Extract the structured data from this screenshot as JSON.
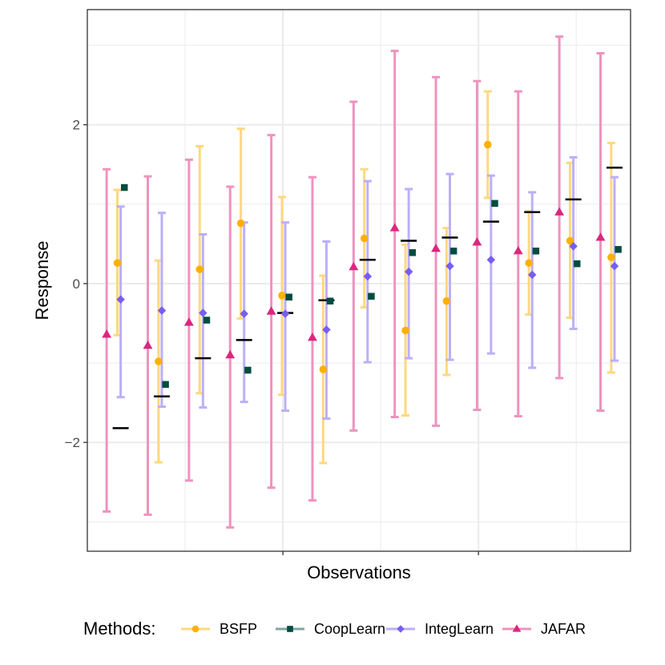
{
  "chart_data": {
    "type": "errorbar",
    "xlabel": "Observations",
    "ylabel": "Response",
    "ylim": [
      -3.37,
      3.45
    ],
    "yticks": [
      -2,
      0,
      2
    ],
    "ytick_labels": [
      "−2",
      "0",
      "2"
    ],
    "grid": true,
    "legend_position": "bottom",
    "legend_title": "Methods:",
    "observations": 13,
    "truth": [
      -1.82,
      -1.42,
      -0.94,
      -0.71,
      -0.37,
      -0.21,
      0.3,
      0.54,
      0.58,
      0.78,
      0.9,
      1.06,
      1.46
    ],
    "series": [
      {
        "name": "BSFP",
        "color": "#FFB000",
        "marker": "circle",
        "points": [
          {
            "y": 0.26,
            "lo": -0.65,
            "hi": 1.18
          },
          {
            "y": -0.98,
            "lo": -2.25,
            "hi": 0.29
          },
          {
            "y": 0.18,
            "lo": -1.38,
            "hi": 1.73
          },
          {
            "y": 0.76,
            "lo": -0.44,
            "hi": 1.95
          },
          {
            "y": -0.15,
            "lo": -1.4,
            "hi": 1.09
          },
          {
            "y": -1.08,
            "lo": -2.26,
            "hi": 0.1
          },
          {
            "y": 0.57,
            "lo": -0.3,
            "hi": 1.44
          },
          {
            "y": -0.59,
            "lo": -1.66,
            "hi": 0.49
          },
          {
            "y": -0.22,
            "lo": -1.15,
            "hi": 0.7
          },
          {
            "y": 1.75,
            "lo": 1.08,
            "hi": 2.42
          },
          {
            "y": 0.26,
            "lo": -0.39,
            "hi": 0.91
          },
          {
            "y": 0.54,
            "lo": -0.43,
            "hi": 1.52
          },
          {
            "y": 0.33,
            "lo": -1.12,
            "hi": 1.77
          }
        ]
      },
      {
        "name": "CoopLearn",
        "color": "#004D40",
        "marker": "square",
        "points": [
          {
            "y": 1.21
          },
          {
            "y": -1.27
          },
          {
            "y": -0.46
          },
          {
            "y": -1.09
          },
          {
            "y": -0.17
          },
          {
            "y": -0.22
          },
          {
            "y": -0.16
          },
          {
            "y": 0.39
          },
          {
            "y": 0.41
          },
          {
            "y": 1.01
          },
          {
            "y": 0.41
          },
          {
            "y": 0.25
          },
          {
            "y": 0.43
          }
        ]
      },
      {
        "name": "IntegLearn",
        "color": "#785EF0",
        "marker": "diamond",
        "points": [
          {
            "y": -0.2,
            "lo": -1.43,
            "hi": 0.97
          },
          {
            "y": -0.34,
            "lo": -1.55,
            "hi": 0.89
          },
          {
            "y": -0.37,
            "lo": -1.56,
            "hi": 0.62
          },
          {
            "y": -0.38,
            "lo": -1.49,
            "hi": 0.77
          },
          {
            "y": -0.38,
            "lo": -1.6,
            "hi": 0.77
          },
          {
            "y": -0.58,
            "lo": -1.7,
            "hi": 0.53
          },
          {
            "y": 0.09,
            "lo": -0.99,
            "hi": 1.29
          },
          {
            "y": 0.15,
            "lo": -0.94,
            "hi": 1.19
          },
          {
            "y": 0.22,
            "lo": -0.96,
            "hi": 1.38
          },
          {
            "y": 0.3,
            "lo": -0.88,
            "hi": 1.36
          },
          {
            "y": 0.11,
            "lo": -1.06,
            "hi": 1.15
          },
          {
            "y": 0.47,
            "lo": -0.57,
            "hi": 1.59
          },
          {
            "y": 0.22,
            "lo": -0.97,
            "hi": 1.34
          }
        ]
      },
      {
        "name": "JAFAR",
        "color": "#DC267F",
        "marker": "triangle",
        "points": [
          {
            "y": -0.64,
            "lo": -2.87,
            "hi": 1.44
          },
          {
            "y": -0.78,
            "lo": -2.91,
            "hi": 1.35
          },
          {
            "y": -0.49,
            "lo": -2.48,
            "hi": 1.56
          },
          {
            "y": -0.9,
            "lo": -3.07,
            "hi": 1.22
          },
          {
            "y": -0.35,
            "lo": -2.57,
            "hi": 1.87
          },
          {
            "y": -0.68,
            "lo": -2.73,
            "hi": 1.34
          },
          {
            "y": 0.21,
            "lo": -1.85,
            "hi": 2.29
          },
          {
            "y": 0.7,
            "lo": -1.68,
            "hi": 2.93
          },
          {
            "y": 0.44,
            "lo": -1.79,
            "hi": 2.6
          },
          {
            "y": 0.52,
            "lo": -1.59,
            "hi": 2.55
          },
          {
            "y": 0.41,
            "lo": -1.67,
            "hi": 2.42
          },
          {
            "y": 0.9,
            "lo": -1.19,
            "hi": 3.11
          },
          {
            "y": 0.58,
            "lo": -1.6,
            "hi": 2.9
          }
        ]
      }
    ]
  }
}
